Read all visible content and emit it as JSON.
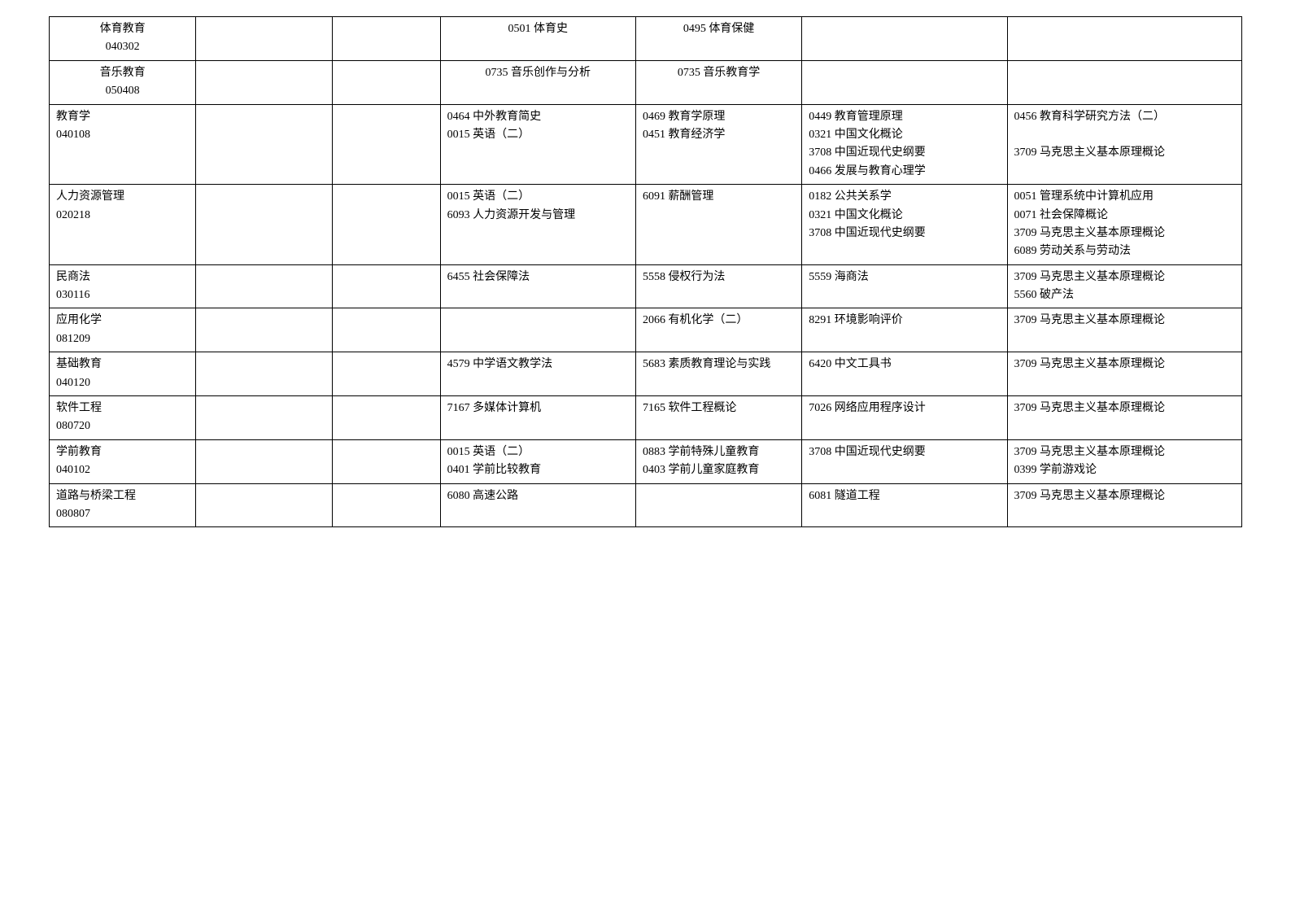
{
  "rows": [
    {
      "c1Center": true,
      "c1": [
        "体育教育",
        "040302"
      ],
      "c2": [],
      "c3": [],
      "c4Center": true,
      "c4": [
        "0501 体育史"
      ],
      "c5Center": true,
      "c5": [
        "0495 体育保健"
      ],
      "c6": [],
      "c7": []
    },
    {
      "c1Center": true,
      "c1": [
        "音乐教育",
        "050408"
      ],
      "c2": [],
      "c3": [],
      "c4Center": true,
      "c4": [
        "0735 音乐创作与分析"
      ],
      "c5Center": true,
      "c5": [
        "0735 音乐教育学"
      ],
      "c6": [],
      "c7": []
    },
    {
      "c1": [
        "教育学",
        "040108"
      ],
      "c2": [],
      "c3": [],
      "c4": [
        "0464 中外教育简史",
        "0015 英语（二）"
      ],
      "c5": [
        "0469 教育学原理",
        "0451 教育经济学"
      ],
      "c6": [
        "0449 教育管理原理",
        "0321 中国文化概论",
        "3708 中国近现代史纲要",
        "0466 发展与教育心理学"
      ],
      "c7": [
        "0456 教育科学研究方法（二）",
        "",
        "3709 马克思主义基本原理概论"
      ]
    },
    {
      "c1": [
        "人力资源管理",
        "020218"
      ],
      "c2": [],
      "c3": [],
      "c4": [
        "0015 英语（二）",
        "6093 人力资源开发与管理"
      ],
      "c5": [
        "6091 薪酬管理"
      ],
      "c6": [
        "0182 公共关系学",
        "0321 中国文化概论",
        "3708 中国近现代史纲要"
      ],
      "c7": [
        "0051 管理系统中计算机应用",
        "0071 社会保障概论",
        "3709 马克思主义基本原理概论",
        "6089 劳动关系与劳动法"
      ]
    },
    {
      "c1": [
        "民商法",
        "030116"
      ],
      "c2": [],
      "c3": [],
      "c4": [
        "6455 社会保障法"
      ],
      "c5": [
        "5558 侵权行为法"
      ],
      "c6": [
        "5559 海商法"
      ],
      "c7": [
        "3709 马克思主义基本原理概论",
        "5560 破产法"
      ]
    },
    {
      "c1": [
        "应用化学",
        "081209"
      ],
      "c2": [],
      "c3": [],
      "c4": [],
      "c5": [
        "2066 有机化学（二）"
      ],
      "c6": [
        "8291 环境影响评价"
      ],
      "c7": [
        "3709 马克思主义基本原理概论"
      ]
    },
    {
      "c1": [
        "基础教育",
        "040120"
      ],
      "c2": [],
      "c3": [],
      "c4": [
        "4579 中学语文教学法"
      ],
      "c5": [
        "5683 素质教育理论与实践"
      ],
      "c6": [
        "6420 中文工具书"
      ],
      "c7": [
        "3709 马克思主义基本原理概论"
      ]
    },
    {
      "c1": [
        "软件工程",
        "080720"
      ],
      "c2": [],
      "c3": [],
      "c4": [
        "7167 多媒体计算机"
      ],
      "c5": [
        "7165 软件工程概论"
      ],
      "c6": [
        "7026 网络应用程序设计"
      ],
      "c7": [
        "3709 马克思主义基本原理概论"
      ]
    },
    {
      "c1": [
        "学前教育",
        "040102"
      ],
      "c2": [],
      "c3": [],
      "c4": [
        "0015 英语（二）",
        "0401 学前比较教育"
      ],
      "c5": [
        "0883 学前特殊儿童教育",
        "0403 学前儿童家庭教育"
      ],
      "c6": [
        "3708 中国近现代史纲要"
      ],
      "c7": [
        "3709 马克思主义基本原理概论",
        "0399 学前游戏论"
      ]
    },
    {
      "c1": [
        "道路与桥梁工程",
        "080807"
      ],
      "c2": [],
      "c3": [],
      "c4": [
        "6080 高速公路"
      ],
      "c5": [],
      "c6": [
        "6081 隧道工程"
      ],
      "c7": [
        "3709 马克思主义基本原理概论"
      ]
    }
  ]
}
